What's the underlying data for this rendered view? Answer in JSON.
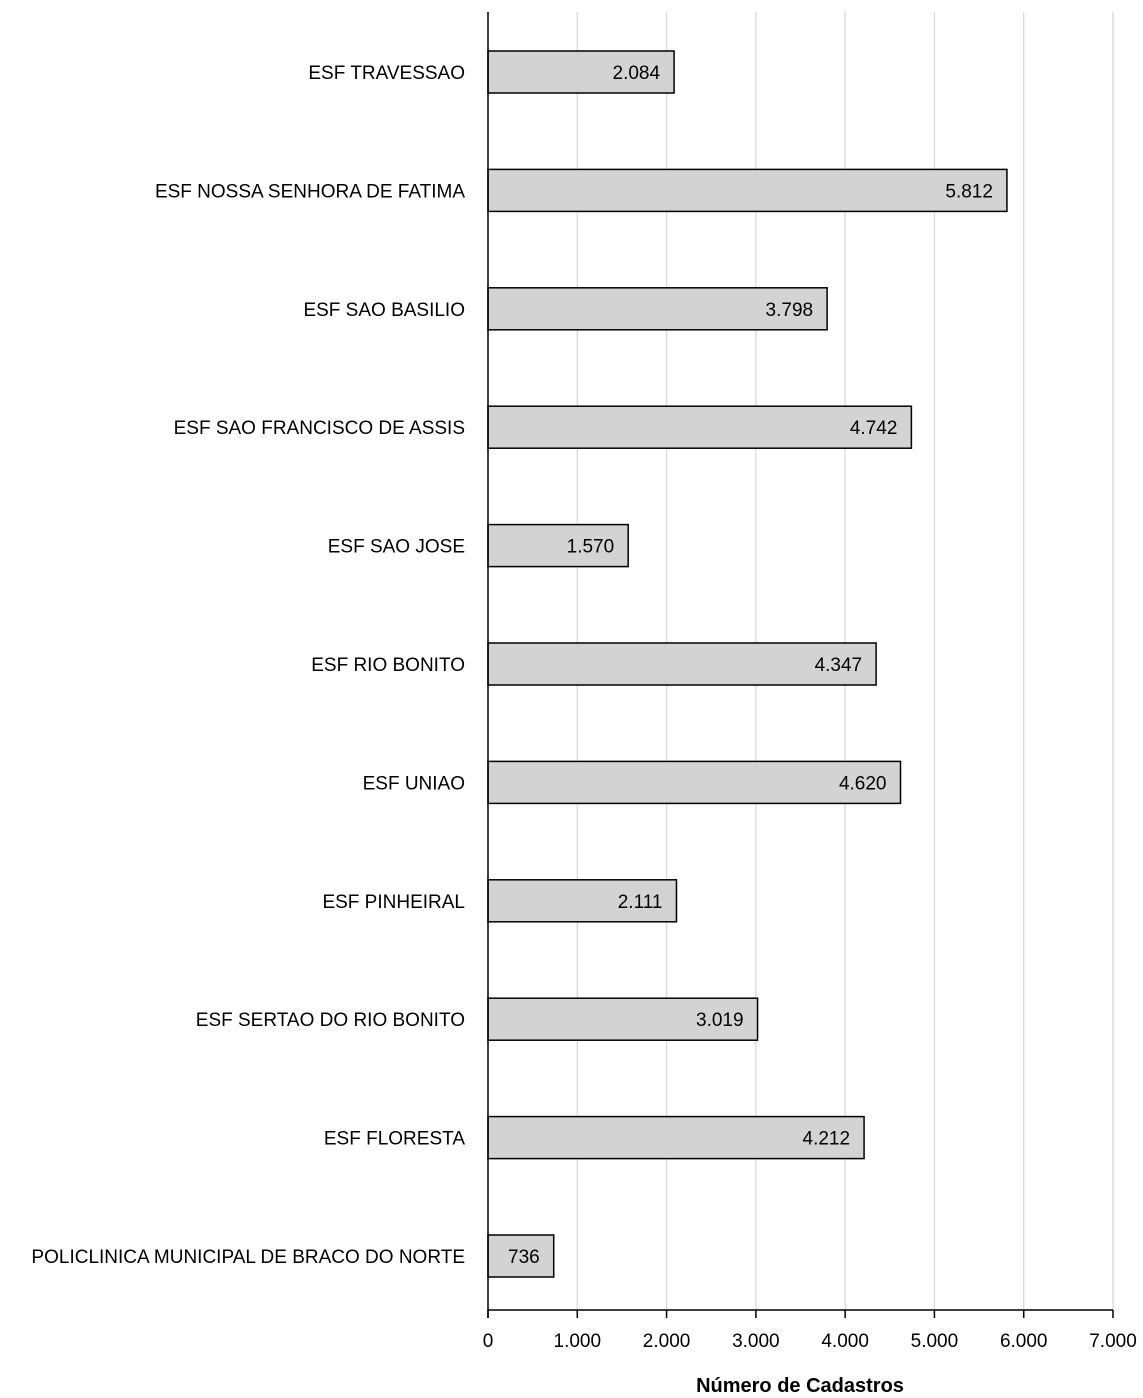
{
  "chart_data": {
    "type": "bar",
    "orientation": "horizontal",
    "categories": [
      "ESF TRAVESSAO",
      "ESF NOSSA SENHORA DE FATIMA",
      "ESF SAO BASILIO",
      "ESF SAO FRANCISCO DE ASSIS",
      "ESF SAO JOSE",
      "ESF RIO BONITO",
      "ESF UNIAO",
      "ESF PINHEIRAL",
      "ESF SERTAO DO RIO BONITO",
      "ESF FLORESTA",
      "POLICLINICA MUNICIPAL DE BRACO DO NORTE"
    ],
    "values": [
      2084,
      5812,
      3798,
      4742,
      1570,
      4347,
      4620,
      2111,
      3019,
      4212,
      736
    ],
    "value_labels": [
      "2.084",
      "5.812",
      "3.798",
      "4.742",
      "1.570",
      "4.347",
      "4.620",
      "2.111",
      "3.019",
      "4.212",
      "736"
    ],
    "title": "",
    "xlabel": "Número de Cadastros",
    "ylabel": "",
    "xlim": [
      0,
      7000
    ],
    "ticks": [
      0,
      1000,
      2000,
      3000,
      4000,
      5000,
      6000,
      7000
    ],
    "tick_labels": [
      "0",
      "1.000",
      "2.000",
      "3.000",
      "4.000",
      "5.000",
      "6.000",
      "7.000"
    ],
    "grid": "vertical",
    "legend": "none",
    "colors": {
      "bar_fill": "#d3d3d3",
      "bar_stroke": "#000000",
      "grid": "#d9d9d9",
      "axis": "#000000"
    }
  }
}
